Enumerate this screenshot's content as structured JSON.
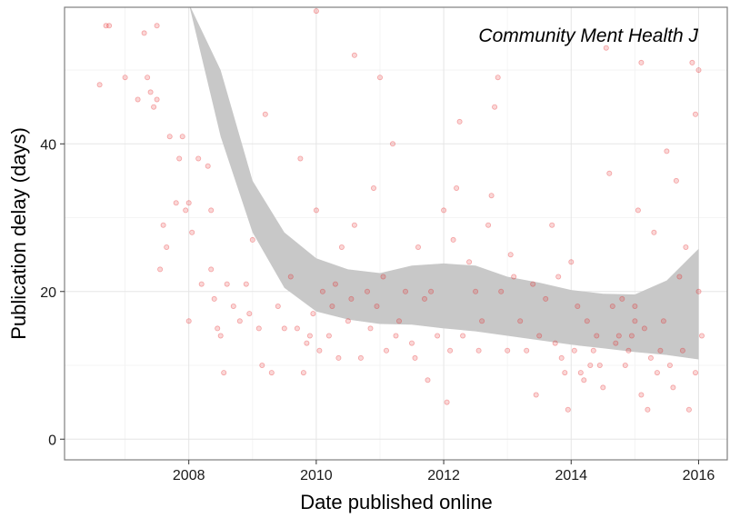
{
  "chart_data": {
    "type": "scatter",
    "title": "",
    "annotation": "Community Ment Health J",
    "xlabel": "Date published online",
    "ylabel": "Publication delay (days)",
    "xlim": [
      2006.05,
      2016.45
    ],
    "ylim": [
      -2.8,
      58.5
    ],
    "x_ticks": [
      2008,
      2010,
      2012,
      2014,
      2016
    ],
    "x_tick_labels": [
      "2008",
      "2010",
      "2012",
      "2014",
      "2016"
    ],
    "y_ticks": [
      0,
      20,
      40
    ],
    "y_tick_labels": [
      "0",
      "20",
      "40"
    ],
    "grid": true,
    "point_color": "#e41a1c",
    "band_color": "#c8c8c8",
    "series": [
      {
        "name": "articles",
        "type": "scatter",
        "points": [
          [
            2006.6,
            48
          ],
          [
            2006.7,
            56
          ],
          [
            2006.75,
            56
          ],
          [
            2007.0,
            49
          ],
          [
            2007.2,
            46
          ],
          [
            2007.3,
            55
          ],
          [
            2007.35,
            49
          ],
          [
            2007.4,
            47
          ],
          [
            2007.45,
            45
          ],
          [
            2007.5,
            46
          ],
          [
            2007.5,
            56
          ],
          [
            2007.55,
            23
          ],
          [
            2007.6,
            29
          ],
          [
            2007.65,
            26
          ],
          [
            2007.7,
            41
          ],
          [
            2007.8,
            32
          ],
          [
            2007.85,
            38
          ],
          [
            2007.9,
            41
          ],
          [
            2007.95,
            31
          ],
          [
            2008.0,
            32
          ],
          [
            2008.0,
            16
          ],
          [
            2008.05,
            28
          ],
          [
            2008.15,
            38
          ],
          [
            2008.2,
            21
          ],
          [
            2008.3,
            37
          ],
          [
            2008.35,
            31
          ],
          [
            2008.35,
            23
          ],
          [
            2008.4,
            19
          ],
          [
            2008.45,
            15
          ],
          [
            2008.5,
            14
          ],
          [
            2008.55,
            9
          ],
          [
            2008.6,
            21
          ],
          [
            2008.7,
            18
          ],
          [
            2008.8,
            16
          ],
          [
            2008.9,
            21
          ],
          [
            2008.95,
            17
          ],
          [
            2009.0,
            27
          ],
          [
            2009.1,
            15
          ],
          [
            2009.15,
            10
          ],
          [
            2009.2,
            44
          ],
          [
            2009.3,
            9
          ],
          [
            2009.4,
            18
          ],
          [
            2009.5,
            15
          ],
          [
            2009.6,
            22
          ],
          [
            2009.7,
            15
          ],
          [
            2009.75,
            38
          ],
          [
            2009.8,
            9
          ],
          [
            2009.85,
            13
          ],
          [
            2009.9,
            14
          ],
          [
            2009.95,
            17
          ],
          [
            2010.0,
            58
          ],
          [
            2010.0,
            31
          ],
          [
            2010.05,
            12
          ],
          [
            2010.1,
            20
          ],
          [
            2010.2,
            14
          ],
          [
            2010.25,
            18
          ],
          [
            2010.3,
            21
          ],
          [
            2010.35,
            11
          ],
          [
            2010.4,
            26
          ],
          [
            2010.5,
            16
          ],
          [
            2010.55,
            19
          ],
          [
            2010.6,
            52
          ],
          [
            2010.6,
            29
          ],
          [
            2010.7,
            11
          ],
          [
            2010.8,
            20
          ],
          [
            2010.85,
            15
          ],
          [
            2010.9,
            34
          ],
          [
            2010.95,
            18
          ],
          [
            2011.0,
            49
          ],
          [
            2011.05,
            22
          ],
          [
            2011.1,
            12
          ],
          [
            2011.2,
            40
          ],
          [
            2011.25,
            14
          ],
          [
            2011.3,
            16
          ],
          [
            2011.4,
            20
          ],
          [
            2011.5,
            13
          ],
          [
            2011.55,
            11
          ],
          [
            2011.6,
            26
          ],
          [
            2011.7,
            19
          ],
          [
            2011.75,
            8
          ],
          [
            2011.8,
            20
          ],
          [
            2011.9,
            14
          ],
          [
            2012.0,
            31
          ],
          [
            2012.05,
            5
          ],
          [
            2012.1,
            12
          ],
          [
            2012.15,
            27
          ],
          [
            2012.2,
            34
          ],
          [
            2012.25,
            43
          ],
          [
            2012.3,
            14
          ],
          [
            2012.4,
            24
          ],
          [
            2012.5,
            20
          ],
          [
            2012.55,
            12
          ],
          [
            2012.6,
            16
          ],
          [
            2012.7,
            29
          ],
          [
            2012.75,
            33
          ],
          [
            2012.8,
            45
          ],
          [
            2012.85,
            49
          ],
          [
            2012.9,
            20
          ],
          [
            2013.0,
            12
          ],
          [
            2013.05,
            25
          ],
          [
            2013.1,
            22
          ],
          [
            2013.2,
            16
          ],
          [
            2013.3,
            12
          ],
          [
            2013.4,
            21
          ],
          [
            2013.45,
            6
          ],
          [
            2013.5,
            14
          ],
          [
            2013.6,
            19
          ],
          [
            2013.7,
            29
          ],
          [
            2013.75,
            13
          ],
          [
            2013.8,
            22
          ],
          [
            2013.85,
            11
          ],
          [
            2013.9,
            9
          ],
          [
            2013.95,
            4
          ],
          [
            2014.0,
            24
          ],
          [
            2014.05,
            12
          ],
          [
            2014.1,
            18
          ],
          [
            2014.15,
            9
          ],
          [
            2014.2,
            8
          ],
          [
            2014.25,
            16
          ],
          [
            2014.3,
            10
          ],
          [
            2014.35,
            12
          ],
          [
            2014.4,
            14
          ],
          [
            2014.45,
            10
          ],
          [
            2014.5,
            7
          ],
          [
            2014.55,
            53
          ],
          [
            2014.6,
            36
          ],
          [
            2014.65,
            18
          ],
          [
            2014.7,
            13
          ],
          [
            2014.75,
            14
          ],
          [
            2014.8,
            19
          ],
          [
            2014.85,
            10
          ],
          [
            2014.9,
            12
          ],
          [
            2014.95,
            14
          ],
          [
            2015.0,
            18
          ],
          [
            2015.0,
            16
          ],
          [
            2015.05,
            31
          ],
          [
            2015.1,
            51
          ],
          [
            2015.1,
            6
          ],
          [
            2015.15,
            15
          ],
          [
            2015.2,
            4
          ],
          [
            2015.25,
            11
          ],
          [
            2015.3,
            28
          ],
          [
            2015.35,
            9
          ],
          [
            2015.4,
            12
          ],
          [
            2015.45,
            16
          ],
          [
            2015.5,
            39
          ],
          [
            2015.55,
            10
          ],
          [
            2015.6,
            7
          ],
          [
            2015.65,
            35
          ],
          [
            2015.7,
            22
          ],
          [
            2015.75,
            12
          ],
          [
            2015.8,
            26
          ],
          [
            2015.85,
            4
          ],
          [
            2015.9,
            51
          ],
          [
            2015.95,
            44
          ],
          [
            2016.0,
            50
          ],
          [
            2016.0,
            20
          ],
          [
            2016.05,
            14
          ],
          [
            2015.95,
            9
          ]
        ]
      }
    ],
    "smooth_band": {
      "x": [
        2008.0,
        2008.5,
        2009.0,
        2009.5,
        2010.0,
        2010.5,
        2011.0,
        2011.5,
        2012.0,
        2012.5,
        2013.0,
        2013.5,
        2014.0,
        2014.5,
        2015.0,
        2015.5,
        2016.0
      ],
      "upper": [
        59,
        50,
        35,
        28,
        24.5,
        23,
        22.5,
        23.5,
        23.8,
        23.5,
        22,
        21.2,
        20.2,
        19.7,
        19.6,
        21.5,
        25.8
      ],
      "lower": [
        59,
        41,
        28,
        20.5,
        17.3,
        16.2,
        15.6,
        15.5,
        15,
        14.6,
        14,
        13.4,
        12.8,
        12.3,
        11.8,
        11.4,
        10.8
      ]
    }
  }
}
